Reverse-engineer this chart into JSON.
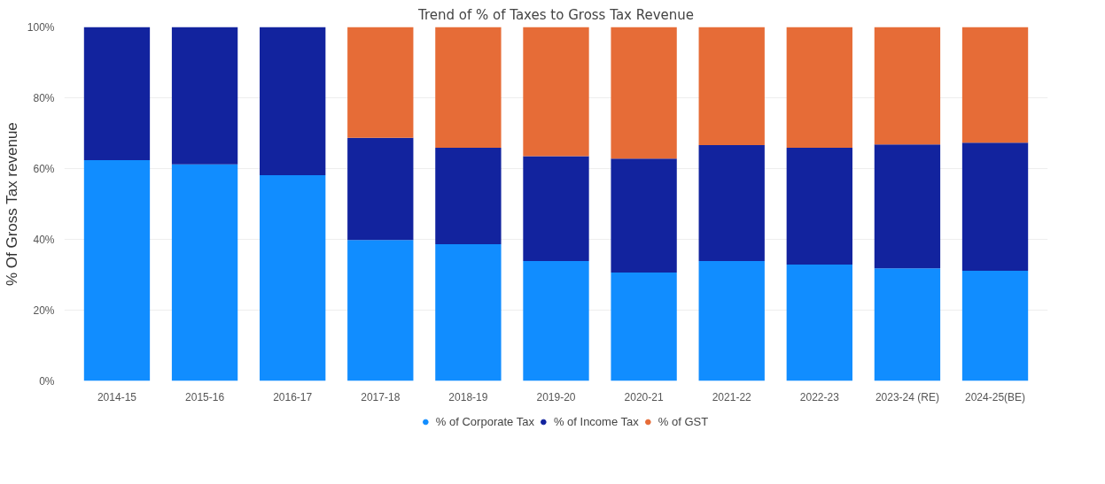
{
  "chart_data": {
    "type": "bar",
    "stacked": true,
    "title": "Trend of % of Taxes to Gross Tax Revenue",
    "ylabel": "% Of Gross Tax revenue",
    "categories": [
      "2014-15",
      "2015-16",
      "2016-17",
      "2017-18",
      "2018-19",
      "2019-20",
      "2020-21",
      "2021-22",
      "2022-23",
      "2023-24 (RE)",
      "2024-25(BE)"
    ],
    "series": [
      {
        "name": "% of Corporate Tax",
        "color": "#118dff",
        "values": [
          62.4,
          61.2,
          58.1,
          39.8,
          38.6,
          33.9,
          30.6,
          33.9,
          32.9,
          31.8,
          31.1
        ]
      },
      {
        "name": "% of Income Tax",
        "color": "#12239e",
        "values": [
          37.6,
          38.8,
          41.9,
          28.9,
          27.3,
          29.6,
          32.2,
          32.7,
          33.0,
          35.0,
          36.2
        ]
      },
      {
        "name": "% of GST",
        "color": "#e66c37",
        "values": [
          null,
          null,
          null,
          31.3,
          34.1,
          36.5,
          37.2,
          33.4,
          34.1,
          33.2,
          32.7
        ]
      }
    ],
    "ylim": [
      0,
      100
    ],
    "yticks": [
      {
        "value": 0,
        "label": "0%"
      },
      {
        "value": 20,
        "label": "20%"
      },
      {
        "value": 40,
        "label": "40%"
      },
      {
        "value": 60,
        "label": "60%"
      },
      {
        "value": 80,
        "label": "80%"
      },
      {
        "value": 100,
        "label": "100%"
      }
    ],
    "grid": "y",
    "legend": "bottom"
  }
}
